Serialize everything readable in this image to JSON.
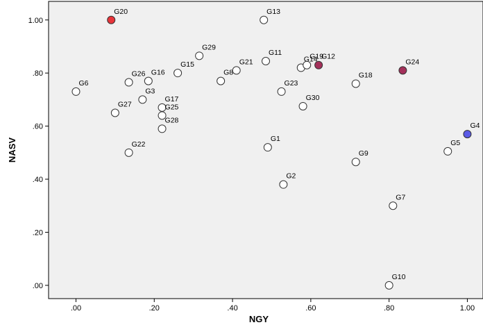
{
  "chart_data": {
    "type": "scatter",
    "title": "",
    "xlabel": "NGY",
    "ylabel": "NASV",
    "xlim": [
      -0.07,
      1.04
    ],
    "ylim": [
      -0.05,
      1.07
    ],
    "x_ticks": [
      ".00",
      ".20",
      ".40",
      ".60",
      ".80",
      "1.00"
    ],
    "x_tick_values": [
      0,
      0.2,
      0.4,
      0.6,
      0.8,
      1.0
    ],
    "y_ticks": [
      ".00",
      ".20",
      ".40",
      ".60",
      ".80",
      "1.00"
    ],
    "y_tick_values": [
      0,
      0.2,
      0.4,
      0.6,
      0.8,
      1.0
    ],
    "grid": false,
    "legend": "none",
    "colors": {
      "plot_bg": "#F0F0F0",
      "point_default": "#FFFFFF",
      "point_red": "#E8343A",
      "point_maroon": "#A3305A",
      "point_blue": "#5A5AE6",
      "point_stroke": "#333333"
    },
    "points": [
      {
        "label": "G1",
        "x": 0.49,
        "y": 0.52,
        "color": "default"
      },
      {
        "label": "G2",
        "x": 0.53,
        "y": 0.38,
        "color": "default"
      },
      {
        "label": "G3",
        "x": 0.17,
        "y": 0.7,
        "color": "default"
      },
      {
        "label": "G4",
        "x": 1.0,
        "y": 0.57,
        "color": "blue"
      },
      {
        "label": "G5",
        "x": 0.95,
        "y": 0.505,
        "color": "default"
      },
      {
        "label": "G6",
        "x": 0.0,
        "y": 0.73,
        "color": "default"
      },
      {
        "label": "G7",
        "x": 0.81,
        "y": 0.3,
        "color": "default"
      },
      {
        "label": "G8",
        "x": 0.37,
        "y": 0.77,
        "color": "default"
      },
      {
        "label": "G9",
        "x": 0.715,
        "y": 0.465,
        "color": "default"
      },
      {
        "label": "G10",
        "x": 0.8,
        "y": 0.0,
        "color": "default"
      },
      {
        "label": "G11",
        "x": 0.485,
        "y": 0.845,
        "color": "default"
      },
      {
        "label": "G12",
        "x": 0.62,
        "y": 0.83,
        "color": "maroon"
      },
      {
        "label": "G13",
        "x": 0.48,
        "y": 1.0,
        "color": "default"
      },
      {
        "label": "G14",
        "x": 0.575,
        "y": 0.82,
        "color": "default"
      },
      {
        "label": "G15",
        "x": 0.26,
        "y": 0.8,
        "color": "default"
      },
      {
        "label": "G16",
        "x": 0.185,
        "y": 0.77,
        "color": "default"
      },
      {
        "label": "G17",
        "x": 0.22,
        "y": 0.67,
        "color": "default"
      },
      {
        "label": "G18",
        "x": 0.715,
        "y": 0.76,
        "color": "default"
      },
      {
        "label": "G19",
        "x": 0.59,
        "y": 0.83,
        "color": "default"
      },
      {
        "label": "G20",
        "x": 0.09,
        "y": 1.0,
        "color": "red"
      },
      {
        "label": "G21",
        "x": 0.41,
        "y": 0.81,
        "color": "default"
      },
      {
        "label": "G22",
        "x": 0.135,
        "y": 0.5,
        "color": "default"
      },
      {
        "label": "G23",
        "x": 0.525,
        "y": 0.73,
        "color": "default"
      },
      {
        "label": "G24",
        "x": 0.835,
        "y": 0.81,
        "color": "maroon"
      },
      {
        "label": "G25",
        "x": 0.22,
        "y": 0.64,
        "color": "default"
      },
      {
        "label": "G26",
        "x": 0.135,
        "y": 0.765,
        "color": "default"
      },
      {
        "label": "G27",
        "x": 0.1,
        "y": 0.65,
        "color": "default"
      },
      {
        "label": "G28",
        "x": 0.22,
        "y": 0.59,
        "color": "default"
      },
      {
        "label": "G29",
        "x": 0.315,
        "y": 0.865,
        "color": "default"
      },
      {
        "label": "G30",
        "x": 0.58,
        "y": 0.675,
        "color": "default"
      }
    ]
  }
}
